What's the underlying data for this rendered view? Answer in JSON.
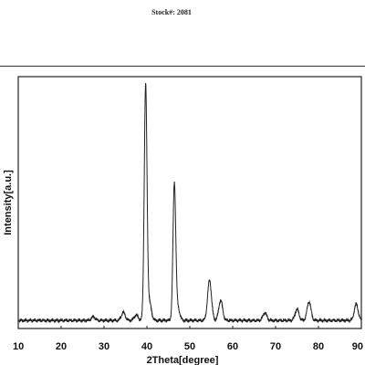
{
  "header": {
    "stock_label": "Stock#: 2081"
  },
  "chart_data": {
    "type": "line",
    "title": "",
    "xlabel": "2Theta[degree]",
    "ylabel": "Intensity[a.u.]",
    "xlim": [
      10,
      90
    ],
    "ylim": [
      0,
      100
    ],
    "xticks": [
      10,
      20,
      30,
      40,
      50,
      60,
      70,
      80,
      90
    ],
    "yticks": [],
    "grid": false,
    "legend": "none",
    "line_color": "#222222",
    "baseline": 3.2,
    "peaks": [
      {
        "x": 27.5,
        "y": 1.4
      },
      {
        "x": 34.5,
        "y": 3.2
      },
      {
        "x": 37.5,
        "y": 2.2
      },
      {
        "x": 39.7,
        "y": 93
      },
      {
        "x": 40.6,
        "y": 7
      },
      {
        "x": 46.4,
        "y": 54
      },
      {
        "x": 47.2,
        "y": 5
      },
      {
        "x": 54.6,
        "y": 16
      },
      {
        "x": 57.2,
        "y": 8
      },
      {
        "x": 67.5,
        "y": 3
      },
      {
        "x": 75.0,
        "y": 4.5
      },
      {
        "x": 77.8,
        "y": 7.5
      },
      {
        "x": 88.8,
        "y": 6.5
      }
    ]
  }
}
